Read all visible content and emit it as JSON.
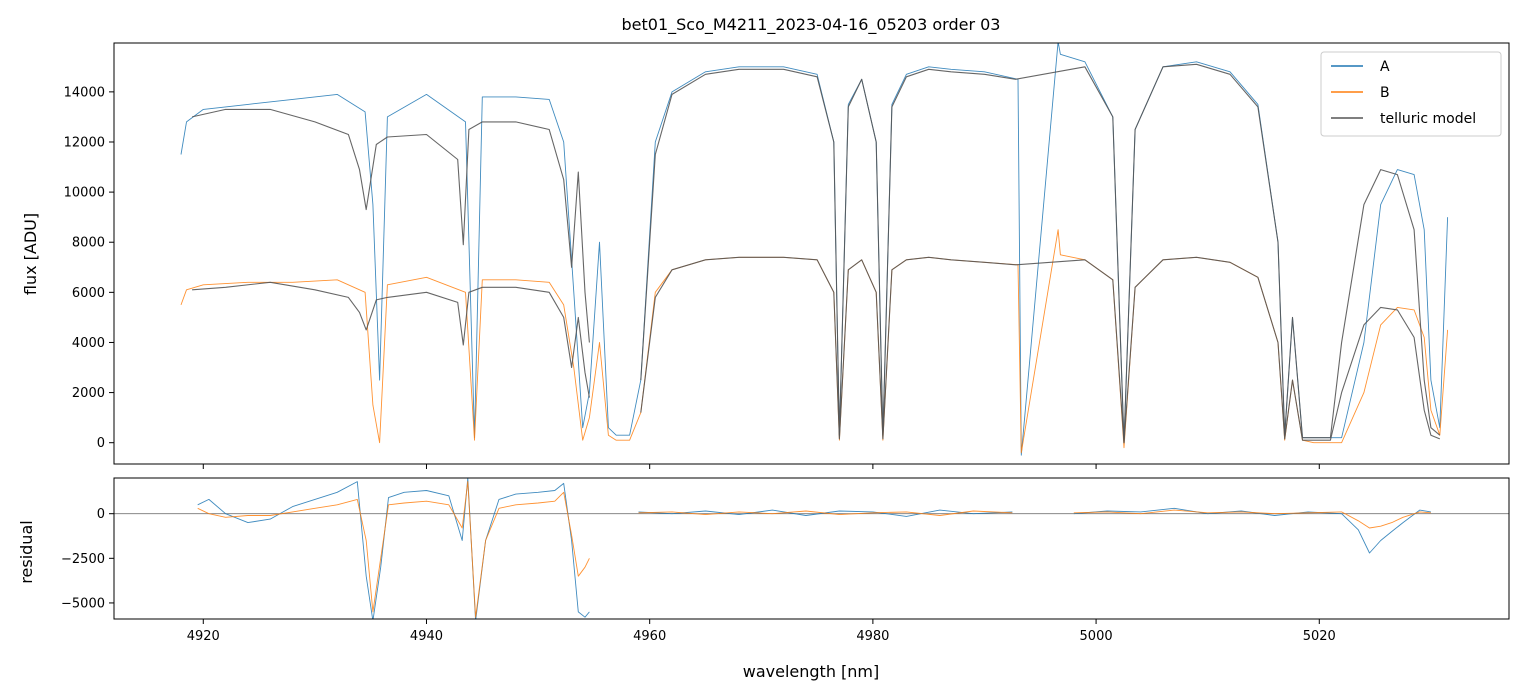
{
  "chart_data": [
    {
      "type": "line",
      "title": "bet01_Sco_M4211_2023-04-16_05203  order 03",
      "xlabel": "",
      "ylabel": "flux [ADU]",
      "xlim": [
        4912,
        5037
      ],
      "ylim": [
        -850,
        15950
      ],
      "xticks": [
        4920,
        4940,
        4960,
        4980,
        5000,
        5020
      ],
      "yticks": [
        0,
        2000,
        4000,
        6000,
        8000,
        10000,
        12000,
        14000
      ],
      "ytick_labels": [
        "0",
        "2000",
        "4000",
        "6000",
        "8000",
        "10000",
        "12000",
        "14000"
      ],
      "legend": {
        "position": "top-right",
        "entries": [
          "A",
          "B",
          "telluric model"
        ]
      },
      "colors": {
        "A": "#1f77b4",
        "B": "#ff7f0e",
        "telluric model": "#555555"
      },
      "series": [
        {
          "name": "A",
          "x": [
            4918.0,
            4918.5,
            4920,
            4924,
            4928,
            4932,
            4934.5,
            4935.2,
            4935.8,
            4936.5,
            4940,
            4943.5,
            4944.3,
            4945,
            4948,
            4951,
            4952.3,
            4953.2,
            4954,
            4954.6,
            4955.5,
            4956.3,
            4957,
            4958.2,
            4959.2,
            4960.5,
            4962,
            4965,
            4968,
            4972,
            4975,
            4976.5,
            4977.0,
            4977.8,
            4979,
            4980.3,
            4980.9,
            4981.7,
            4983,
            4985,
            4987,
            4990,
            4993.0,
            4993.3,
            4996.6,
            4996.8,
            4999,
            5001.5,
            5002.5,
            5003.5,
            5006,
            5009,
            5012,
            5014.5,
            5016.3,
            5016.9,
            5017.6,
            5018.5,
            5019.5,
            5021,
            5022,
            5024,
            5025.5,
            5027,
            5028.5,
            5029.4,
            5030,
            5030.8,
            5031.5
          ],
          "y": [
            11500,
            12800,
            13300,
            13500,
            13700,
            13900,
            13200,
            9500,
            2500,
            13000,
            13900,
            12800,
            200,
            13800,
            13800,
            13700,
            12000,
            6000,
            600,
            2000,
            8000,
            600,
            300,
            300,
            2500,
            12000,
            14000,
            14800,
            15000,
            15000,
            14700,
            12000,
            200,
            13500,
            14500,
            12000,
            200,
            13500,
            14700,
            15000,
            14900,
            14800,
            14500,
            -500,
            16000,
            15500,
            15200,
            13000,
            0,
            12500,
            15000,
            15200,
            14800,
            13500,
            8000,
            300,
            5000,
            200,
            200,
            200,
            200,
            4000,
            9500,
            10900,
            10700,
            8500,
            2500,
            600,
            9000
          ]
        },
        {
          "name": "B",
          "x": [
            4918.0,
            4918.5,
            4920,
            4924,
            4928,
            4932,
            4934.5,
            4935.2,
            4935.8,
            4936.5,
            4940,
            4943.5,
            4944.3,
            4945,
            4948,
            4951,
            4952.3,
            4953.2,
            4954,
            4954.6,
            4955.5,
            4956.3,
            4957,
            4958.2,
            4959.2,
            4960.5,
            4962,
            4965,
            4968,
            4972,
            4975,
            4976.5,
            4977.0,
            4977.8,
            4979,
            4980.3,
            4980.9,
            4981.7,
            4983,
            4985,
            4987,
            4990,
            4993.0,
            4993.3,
            4996.6,
            4996.8,
            4999,
            5001.5,
            5002.5,
            5003.5,
            5006,
            5009,
            5012,
            5014.5,
            5016.3,
            5016.9,
            5017.6,
            5018.5,
            5019.5,
            5021,
            5022,
            5024,
            5025.5,
            5027,
            5028.5,
            5029.4,
            5030,
            5030.8,
            5031.5
          ],
          "y": [
            5500,
            6100,
            6300,
            6400,
            6400,
            6500,
            6000,
            1500,
            0,
            6300,
            6600,
            6000,
            100,
            6500,
            6500,
            6400,
            5500,
            3000,
            100,
            1000,
            4000,
            300,
            100,
            100,
            1200,
            6000,
            6900,
            7300,
            7400,
            7400,
            7300,
            6000,
            100,
            6900,
            7300,
            6000,
            100,
            6900,
            7300,
            7400,
            7300,
            7200,
            7100,
            -400,
            8500,
            7500,
            7300,
            6500,
            -200,
            6200,
            7300,
            7400,
            7200,
            6600,
            4000,
            100,
            2500,
            100,
            0,
            0,
            0,
            2000,
            4700,
            5400,
            5300,
            4200,
            1300,
            300,
            4500
          ]
        },
        {
          "name": "telluric model",
          "x": [
            4919.0,
            4922,
            4926,
            4930,
            4933,
            4934.0,
            4934.6,
            4935.5,
            4936.5,
            4940,
            4942.8,
            4943.3,
            4943.8,
            4945,
            4948,
            4951,
            4952.3,
            4953.0,
            4953.6,
            4954.2,
            4954.6
          ],
          "y": [
            13000,
            13300,
            13300,
            12800,
            12300,
            10900,
            9300,
            11900,
            12200,
            12300,
            11300,
            7900,
            12500,
            12800,
            12800,
            12500,
            10500,
            7000,
            10800,
            6000,
            4000
          ]
        },
        {
          "name": "telluric model",
          "x": [
            4919.0,
            4922,
            4926,
            4930,
            4933,
            4934.0,
            4934.6,
            4935.5,
            4936.5,
            4940,
            4942.8,
            4943.3,
            4943.8,
            4945,
            4948,
            4951,
            4952.3,
            4953.0,
            4953.6,
            4954.2,
            4954.6
          ],
          "y": [
            6100,
            6200,
            6400,
            6100,
            5800,
            5200,
            4500,
            5700,
            5800,
            6000,
            5600,
            3900,
            6000,
            6200,
            6200,
            6000,
            5000,
            3000,
            5000,
            2800,
            1800
          ]
        },
        {
          "name": "telluric model",
          "x": [
            4959.2,
            4960.5,
            4962,
            4965,
            4968,
            4972,
            4975,
            4976.5,
            4977.0,
            4977.8,
            4979,
            4980.3,
            4980.9,
            4981.7,
            4983,
            4985,
            4987,
            4990,
            4992.8,
            4999,
            5001.5,
            5002.5,
            5003.5,
            5006,
            5009,
            5012,
            5014.5,
            5016.3,
            5016.9,
            5017.6,
            5018.5,
            5019.5,
            5021,
            5022,
            5024,
            5025.5,
            5027,
            5028.5,
            5029.4,
            5030,
            5030.8
          ],
          "y": [
            2500,
            11500,
            13900,
            14700,
            14900,
            14900,
            14600,
            12000,
            300,
            13400,
            14500,
            12000,
            300,
            13400,
            14600,
            14900,
            14800,
            14700,
            14500,
            15000,
            13000,
            0,
            12500,
            15000,
            15100,
            14700,
            13400,
            8000,
            300,
            5000,
            200,
            200,
            200,
            4000,
            9500,
            10900,
            10700,
            8500,
            2500,
            600,
            300
          ]
        },
        {
          "name": "telluric model",
          "x": [
            4959.2,
            4960.5,
            4962,
            4965,
            4968,
            4972,
            4975,
            4976.5,
            4977.0,
            4977.8,
            4979,
            4980.3,
            4980.9,
            4981.7,
            4983,
            4985,
            4987,
            4990,
            4992.8,
            4999,
            5001.5,
            5002.5,
            5003.5,
            5006,
            5009,
            5012,
            5014.5,
            5016.3,
            5016.9,
            5017.6,
            5018.5,
            5019.5,
            5021,
            5022,
            5024,
            5025.5,
            5027,
            5028.5,
            5029.4,
            5030,
            5030.8
          ],
          "y": [
            1200,
            5800,
            6900,
            7300,
            7400,
            7400,
            7300,
            6000,
            150,
            6900,
            7300,
            6000,
            150,
            6900,
            7300,
            7400,
            7300,
            7200,
            7100,
            7300,
            6500,
            0,
            6200,
            7300,
            7400,
            7200,
            6600,
            4000,
            150,
            2500,
            100,
            100,
            100,
            2000,
            4700,
            5400,
            5300,
            4200,
            1300,
            300,
            150
          ]
        }
      ]
    },
    {
      "type": "line",
      "title": "",
      "xlabel": "wavelength [nm]",
      "ylabel": "residual",
      "xlim": [
        4912,
        5037
      ],
      "ylim": [
        -5900,
        2000
      ],
      "xticks": [
        4920,
        4940,
        4960,
        4980,
        5000,
        5020
      ],
      "xtick_labels": [
        "4920",
        "4940",
        "4960",
        "4980",
        "5000",
        "5020"
      ],
      "yticks": [
        0,
        -2500,
        -5000
      ],
      "ytick_labels": [
        "0",
        "−2500",
        "−5000"
      ],
      "zero_line": 0,
      "series": [
        {
          "name": "A",
          "x": [
            4919.5,
            4920.5,
            4922,
            4924,
            4926,
            4928,
            4930,
            4932,
            4933.8,
            4934.6,
            4935.2,
            4935.9,
            4936.6,
            4938,
            4940,
            4942,
            4943.2,
            4943.7,
            4944.4,
            4945.3,
            4946.5,
            4948,
            4950,
            4951.5,
            4952.3,
            4953.0,
            4953.6,
            4954.2,
            4954.6
          ],
          "y": [
            500,
            800,
            0,
            -500,
            -300,
            400,
            800,
            1200,
            1800,
            -3500,
            -6000,
            -3000,
            900,
            1200,
            1300,
            1000,
            -1500,
            2000,
            -6000,
            -1500,
            800,
            1100,
            1200,
            1300,
            1700,
            -1500,
            -5500,
            -5800,
            -5500
          ]
        },
        {
          "name": "B",
          "x": [
            4919.5,
            4920.5,
            4922,
            4924,
            4926,
            4928,
            4930,
            4932,
            4933.8,
            4934.6,
            4935.2,
            4935.9,
            4936.6,
            4938,
            4940,
            4942,
            4943.2,
            4943.7,
            4944.4,
            4945.3,
            4946.5,
            4948,
            4950,
            4951.5,
            4952.3,
            4953.0,
            4953.6,
            4954.2,
            4954.6
          ],
          "y": [
            300,
            0,
            -200,
            -100,
            -100,
            100,
            300,
            500,
            800,
            -1500,
            -5500,
            -2500,
            500,
            600,
            700,
            500,
            -800,
            1800,
            -5800,
            -1500,
            300,
            500,
            600,
            700,
            1200,
            -1200,
            -3500,
            -3000,
            -2500
          ]
        },
        {
          "name": "A",
          "x": [
            4959,
            4962,
            4965,
            4968,
            4971,
            4974,
            4977,
            4980,
            4983,
            4986,
            4989,
            4992.5
          ],
          "y": [
            100,
            0,
            150,
            -50,
            200,
            -100,
            150,
            100,
            -150,
            200,
            0,
            100
          ]
        },
        {
          "name": "B",
          "x": [
            4959,
            4962,
            4965,
            4968,
            4971,
            4974,
            4977,
            4980,
            4983,
            4986,
            4989,
            4992.5
          ],
          "y": [
            50,
            100,
            -50,
            100,
            0,
            150,
            -50,
            50,
            100,
            -100,
            150,
            50
          ]
        },
        {
          "name": "A",
          "x": [
            4998,
            5001,
            5004,
            5007,
            5010,
            5013,
            5016,
            5019,
            5022,
            5023.5,
            5024.5,
            5025.5,
            5026.5,
            5027.5,
            5029,
            5030
          ],
          "y": [
            0,
            150,
            100,
            300,
            0,
            150,
            -100,
            100,
            0,
            -900,
            -2200,
            -1500,
            -1000,
            -500,
            200,
            100
          ]
        },
        {
          "name": "B",
          "x": [
            4998,
            5001,
            5004,
            5007,
            5010,
            5013,
            5016,
            5019,
            5022,
            5023.5,
            5024.5,
            5025.5,
            5026.5,
            5027.5,
            5029,
            5030
          ],
          "y": [
            50,
            100,
            0,
            200,
            50,
            100,
            0,
            50,
            100,
            -400,
            -800,
            -700,
            -500,
            -200,
            100,
            50
          ]
        }
      ]
    }
  ]
}
